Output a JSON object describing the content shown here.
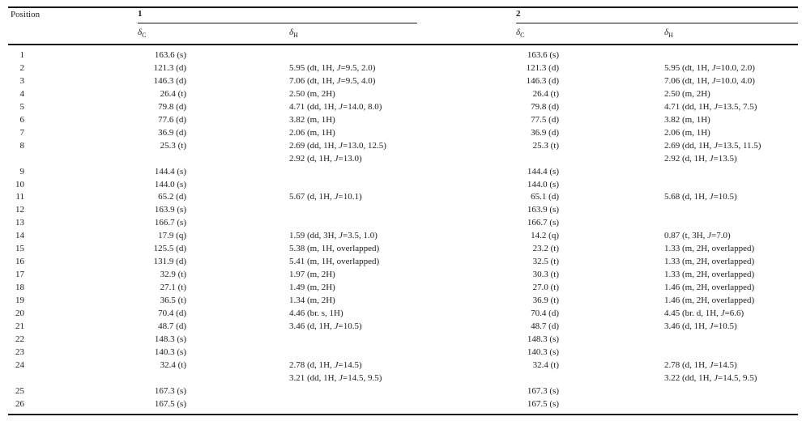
{
  "colors": {
    "text": "#1c1c1c",
    "rule": "#161616",
    "background": "#ffffff"
  },
  "table": {
    "headers": {
      "position": "Position",
      "compound1": "1",
      "compound2": "2",
      "delta": "δ",
      "sub_c": "C",
      "sub_h": "H"
    },
    "rows": [
      {
        "pos": "1",
        "dc1": "163.6 (s)",
        "dh1": "",
        "dc2": "163.6 (s)",
        "dh2": ""
      },
      {
        "pos": "2",
        "dc1": "121.3 (d)",
        "dh1": "5.95 (dt, 1H, J=9.5, 2.0)",
        "dc2": "121.3 (d)",
        "dh2": "5.95 (dt, 1H, J=10.0, 2.0)"
      },
      {
        "pos": "3",
        "dc1": "146.3 (d)",
        "dh1": "7.06 (dt, 1H, J=9.5, 4.0)",
        "dc2": "146.3 (d)",
        "dh2": "7.06 (dt, 1H, J=10.0, 4.0)"
      },
      {
        "pos": "4",
        "dc1": "26.4 (t)",
        "dh1": "2.50 (m, 2H)",
        "dc2": "26.4 (t)",
        "dh2": "2.50 (m, 2H)"
      },
      {
        "pos": "5",
        "dc1": "79.8 (d)",
        "dh1": "4.71 (dd, 1H, J=14.0, 8.0)",
        "dc2": "79.8 (d)",
        "dh2": "4.71 (dd, 1H, J=13.5, 7.5)"
      },
      {
        "pos": "6",
        "dc1": "77.6 (d)",
        "dh1": "3.82 (m, 1H)",
        "dc2": "77.5 (d)",
        "dh2": "3.82 (m, 1H)"
      },
      {
        "pos": "7",
        "dc1": "36.9 (d)",
        "dh1": "2.06 (m, 1H)",
        "dc2": "36.9 (d)",
        "dh2": "2.06 (m, 1H)"
      },
      {
        "pos": "8",
        "dc1": "25.3 (t)",
        "dh1": "2.69 (dd, 1H, J=13.0, 12.5)\n2.92 (d, 1H, J=13.0)",
        "dc2": "25.3 (t)",
        "dh2": "2.69 (dd, 1H, J=13.5, 11.5)\n2.92 (d, 1H, J=13.5)"
      },
      {
        "pos": "9",
        "dc1": "144.4 (s)",
        "dh1": "",
        "dc2": "144.4 (s)",
        "dh2": ""
      },
      {
        "pos": "10",
        "dc1": "144.0 (s)",
        "dh1": "",
        "dc2": "144.0 (s)",
        "dh2": ""
      },
      {
        "pos": "11",
        "dc1": "65.2 (d)",
        "dh1": "5.67 (d, 1H, J=10.1)",
        "dc2": "65.1 (d)",
        "dh2": "5.68 (d, 1H, J=10.5)"
      },
      {
        "pos": "12",
        "dc1": "163.9 (s)",
        "dh1": "",
        "dc2": "163.9 (s)",
        "dh2": ""
      },
      {
        "pos": "13",
        "dc1": "166.7 (s)",
        "dh1": "",
        "dc2": "166.7 (s)",
        "dh2": ""
      },
      {
        "pos": "14",
        "dc1": "17.9 (q)",
        "dh1": "1.59 (dd, 3H, J=3.5, 1.0)",
        "dc2": "14.2 (q)",
        "dh2": "0.87 (t, 3H, J=7.0)"
      },
      {
        "pos": "15",
        "dc1": "125.5 (d)",
        "dh1": "5.38 (m, 1H, overlapped)",
        "dc2": "23.2 (t)",
        "dh2": "1.33 (m, 2H, overlapped)"
      },
      {
        "pos": "16",
        "dc1": "131.9 (d)",
        "dh1": "5.41 (m, 1H, overlapped)",
        "dc2": "32.5 (t)",
        "dh2": "1.33 (m, 2H, overlapped)"
      },
      {
        "pos": "17",
        "dc1": "32.9 (t)",
        "dh1": "1.97 (m, 2H)",
        "dc2": "30.3 (t)",
        "dh2": "1.33 (m, 2H, overlapped)"
      },
      {
        "pos": "18",
        "dc1": "27.1 (t)",
        "dh1": "1.49 (m, 2H)",
        "dc2": "27.0 (t)",
        "dh2": "1.46 (m, 2H, overlapped)"
      },
      {
        "pos": "19",
        "dc1": "36.5 (t)",
        "dh1": "1.34 (m, 2H)",
        "dc2": "36.9 (t)",
        "dh2": "1.46 (m, 2H, overlapped)"
      },
      {
        "pos": "20",
        "dc1": "70.4 (d)",
        "dh1": "4.46 (br. s, 1H)",
        "dc2": "70.4 (d)",
        "dh2": "4.45 (br. d, 1H, J=6.6)"
      },
      {
        "pos": "21",
        "dc1": "48.7 (d)",
        "dh1": "3.46 (d, 1H, J=10.5)",
        "dc2": "48.7 (d)",
        "dh2": "3.46 (d, 1H, J=10.5)"
      },
      {
        "pos": "22",
        "dc1": "148.3 (s)",
        "dh1": "",
        "dc2": "148.3 (s)",
        "dh2": ""
      },
      {
        "pos": "23",
        "dc1": "140.3 (s)",
        "dh1": "",
        "dc2": "140.3 (s)",
        "dh2": ""
      },
      {
        "pos": "24",
        "dc1": "32.4 (t)",
        "dh1": "2.78 (d, 1H, J=14.5)\n3.21 (dd, 1H, J=14.5, 9.5)",
        "dc2": "32.4 (t)",
        "dh2": "2.78 (d, 1H, J=14.5)\n3.22 (dd, 1H, J=14.5, 9.5)"
      },
      {
        "pos": "25",
        "dc1": "167.3 (s)",
        "dh1": "",
        "dc2": "167.3 (s)",
        "dh2": ""
      },
      {
        "pos": "26",
        "dc1": "167.5 (s)",
        "dh1": "",
        "dc2": "167.5 (s)",
        "dh2": ""
      }
    ]
  }
}
